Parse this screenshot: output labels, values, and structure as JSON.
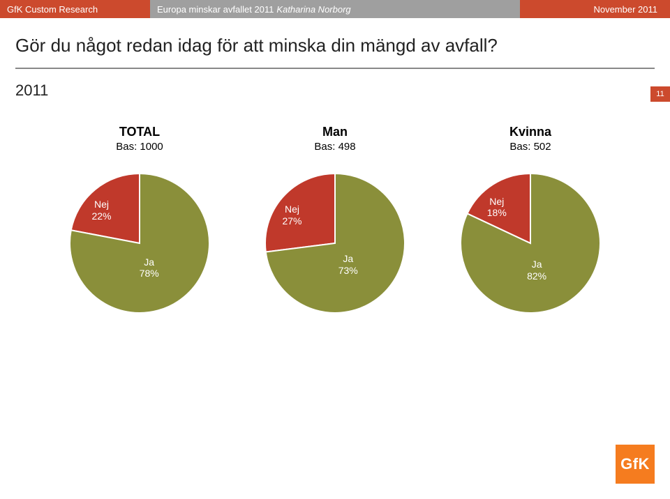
{
  "header": {
    "left": "GfK Custom Research",
    "mid_plain": "Europa minskar avfallet 2011",
    "mid_italic": "Katharina Norborg",
    "right": "November 2011"
  },
  "title": "Gör du något redan idag för att minska din mängd av avfall?",
  "year": "2011",
  "page_number": "11",
  "logo_text": "GfK",
  "colors": {
    "header_orange": "#cc4a2d",
    "header_gray": "#9f9f9f",
    "pie_red": "#c0392b",
    "pie_olive": "#8a8f3a",
    "pie_stroke": "#ffffff",
    "background": "#ffffff",
    "logo_bg": "#f57c1f"
  },
  "charts": [
    {
      "title": "TOTAL",
      "base_label": "Bas: 1000",
      "type": "pie",
      "radius": 100,
      "slices": [
        {
          "label": "Nej",
          "value_label": "22%",
          "value": 22,
          "color": "#c0392b"
        },
        {
          "label": "Ja",
          "value_label": "78%",
          "value": 78,
          "color": "#8a8f3a"
        }
      ]
    },
    {
      "title": "Man",
      "base_label": "Bas: 498",
      "type": "pie",
      "radius": 100,
      "slices": [
        {
          "label": "Nej",
          "value_label": "27%",
          "value": 27,
          "color": "#c0392b"
        },
        {
          "label": "Ja",
          "value_label": "73%",
          "value": 73,
          "color": "#8a8f3a"
        }
      ]
    },
    {
      "title": "Kvinna",
      "base_label": "Bas: 502",
      "type": "pie",
      "radius": 100,
      "slices": [
        {
          "label": "Nej",
          "value_label": "18%",
          "value": 18,
          "color": "#c0392b"
        },
        {
          "label": "Ja",
          "value_label": "82%",
          "value": 82,
          "color": "#8a8f3a"
        }
      ]
    }
  ]
}
